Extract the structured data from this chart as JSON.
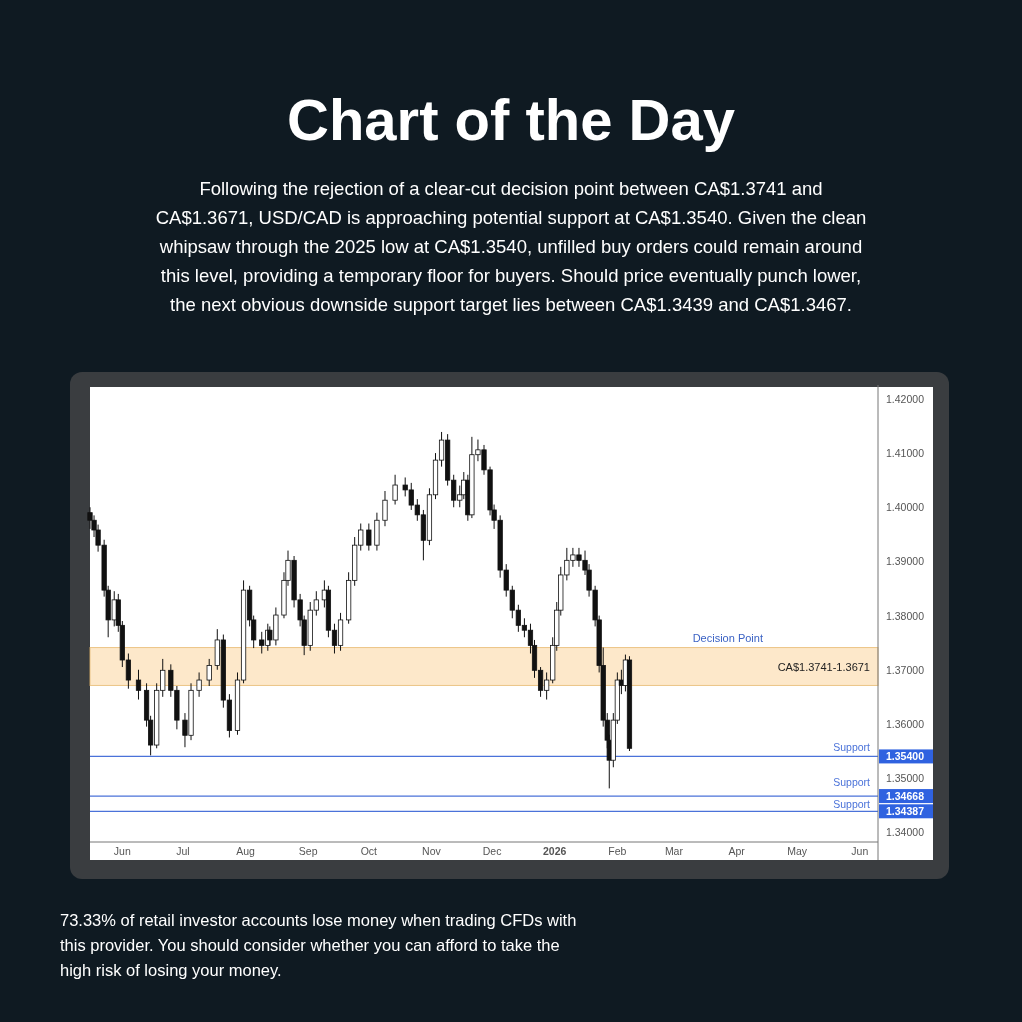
{
  "chart_data": {
    "type": "candlestick",
    "title": "Chart of the Day",
    "subtitle": "Following the rejection of a clear-cut decision point between CA$1.3741 and CA$1.3671, USD/CAD is approaching potential support at CA$1.3540. Given the clean whipsaw through the 2025 low at CA$1.3540, unfilled buy orders could remain around this level, providing a temporary floor for buyers. Should price eventually punch lower, the next obvious downside support target lies between CA$1.3439 and CA$1.3467.",
    "annotations": [
      "73.33% of retail investor accounts lose money when trading CFDs with this provider. You should consider whether you can afford to take the high risk of losing your money.",
      "CA$1.3741-1.3671"
    ],
    "x": [
      "2025-05-16",
      "2025-05-18",
      "2025-05-20",
      "2025-05-23",
      "2025-05-25",
      "2025-05-28",
      "2025-05-30",
      "2025-06-01",
      "2025-06-04",
      "2025-06-09",
      "2025-06-13",
      "2025-06-15",
      "2025-06-18",
      "2025-06-21",
      "2025-06-25",
      "2025-06-28",
      "2025-07-02",
      "2025-07-05",
      "2025-07-09",
      "2025-07-14",
      "2025-07-18",
      "2025-07-21",
      "2025-07-24",
      "2025-07-28",
      "2025-07-31",
      "2025-08-03",
      "2025-08-05",
      "2025-08-09",
      "2025-08-12",
      "2025-08-13",
      "2025-08-16",
      "2025-08-20",
      "2025-08-22",
      "2025-08-25",
      "2025-08-28",
      "2025-08-30",
      "2025-09-02",
      "2025-09-05",
      "2025-09-09",
      "2025-09-11",
      "2025-09-14",
      "2025-09-17",
      "2025-09-21",
      "2025-09-24",
      "2025-09-27",
      "2025-10-01",
      "2025-10-05",
      "2025-10-09",
      "2025-10-14",
      "2025-10-19",
      "2025-10-22",
      "2025-10-25",
      "2025-10-28",
      "2025-10-31",
      "2025-11-03",
      "2025-11-06",
      "2025-11-09",
      "2025-11-12",
      "2025-11-15",
      "2025-11-17",
      "2025-11-19",
      "2025-11-21",
      "2025-11-24",
      "2025-11-27",
      "2025-11-30",
      "2025-12-02",
      "2025-12-05",
      "2025-12-08",
      "2025-12-11",
      "2025-12-14",
      "2025-12-17",
      "2025-12-20",
      "2025-12-22",
      "2025-12-25",
      "2025-12-28",
      "2025-12-31",
      "2026-01-02",
      "2026-01-04",
      "2026-01-07",
      "2026-01-10",
      "2026-01-13",
      "2026-01-16",
      "2026-01-18",
      "2026-01-21",
      "2026-01-23",
      "2026-01-25",
      "2026-01-27",
      "2026-01-28",
      "2026-01-30",
      "2026-02-01",
      "2026-02-03",
      "2026-02-05",
      "2026-02-07"
    ],
    "ohlc": [
      [
        1.399,
        1.4,
        1.396,
        1.3976
      ],
      [
        1.3976,
        1.3985,
        1.3945,
        1.3958
      ],
      [
        1.3958,
        1.3968,
        1.3918,
        1.393
      ],
      [
        1.393,
        1.394,
        1.3835,
        1.3847
      ],
      [
        1.3847,
        1.3855,
        1.376,
        1.3792
      ],
      [
        1.3792,
        1.3845,
        1.378,
        1.3829
      ],
      [
        1.3829,
        1.384,
        1.377,
        1.3782
      ],
      [
        1.3782,
        1.379,
        1.3705,
        1.3718
      ],
      [
        1.3718,
        1.373,
        1.3665,
        1.3681
      ],
      [
        1.3681,
        1.37,
        1.3645,
        1.3662
      ],
      [
        1.3662,
        1.3675,
        1.3595,
        1.3607
      ],
      [
        1.3607,
        1.3615,
        1.3542,
        1.3561
      ],
      [
        1.3561,
        1.3675,
        1.3555,
        1.3662
      ],
      [
        1.3662,
        1.372,
        1.365,
        1.3699
      ],
      [
        1.3699,
        1.371,
        1.365,
        1.3662
      ],
      [
        1.3662,
        1.367,
        1.359,
        1.3607
      ],
      [
        1.3607,
        1.362,
        1.3557,
        1.3579
      ],
      [
        1.3579,
        1.3675,
        1.357,
        1.3662
      ],
      [
        1.3662,
        1.3695,
        1.365,
        1.3681
      ],
      [
        1.3681,
        1.372,
        1.367,
        1.3708
      ],
      [
        1.3708,
        1.3775,
        1.37,
        1.3755
      ],
      [
        1.3755,
        1.3765,
        1.363,
        1.3644
      ],
      [
        1.3644,
        1.3655,
        1.3575,
        1.3588
      ],
      [
        1.3588,
        1.3695,
        1.358,
        1.3681
      ],
      [
        1.3681,
        1.3865,
        1.3675,
        1.3847
      ],
      [
        1.3847,
        1.3855,
        1.378,
        1.3792
      ],
      [
        1.3792,
        1.38,
        1.374,
        1.3755
      ],
      [
        1.3755,
        1.377,
        1.373,
        1.3745
      ],
      [
        1.3745,
        1.3785,
        1.3735,
        1.3773
      ],
      [
        1.3773,
        1.378,
        1.3745,
        1.3755
      ],
      [
        1.3755,
        1.3815,
        1.3745,
        1.3801
      ],
      [
        1.3801,
        1.388,
        1.3795,
        1.3865
      ],
      [
        1.3865,
        1.392,
        1.3855,
        1.3902
      ],
      [
        1.3902,
        1.391,
        1.3815,
        1.3829
      ],
      [
        1.3829,
        1.384,
        1.378,
        1.3792
      ],
      [
        1.3792,
        1.38,
        1.3727,
        1.3745
      ],
      [
        1.3745,
        1.3825,
        1.3735,
        1.381
      ],
      [
        1.381,
        1.3845,
        1.38,
        1.3829
      ],
      [
        1.3829,
        1.3865,
        1.3815,
        1.3847
      ],
      [
        1.3847,
        1.3855,
        1.376,
        1.3773
      ],
      [
        1.3773,
        1.3785,
        1.373,
        1.3745
      ],
      [
        1.3745,
        1.3805,
        1.3735,
        1.3792
      ],
      [
        1.3792,
        1.388,
        1.3785,
        1.3865
      ],
      [
        1.3865,
        1.3945,
        1.3855,
        1.393
      ],
      [
        1.393,
        1.397,
        1.392,
        1.3958
      ],
      [
        1.3958,
        1.397,
        1.392,
        1.393
      ],
      [
        1.393,
        1.399,
        1.392,
        1.3976
      ],
      [
        1.3976,
        1.403,
        1.3965,
        1.4013
      ],
      [
        1.4013,
        1.406,
        1.4005,
        1.4041
      ],
      [
        1.4041,
        1.4055,
        1.402,
        1.4032
      ],
      [
        1.4032,
        1.4045,
        1.3995,
        1.4004
      ],
      [
        1.4004,
        1.4015,
        1.3975,
        1.3986
      ],
      [
        1.3986,
        1.3995,
        1.3902,
        1.3939
      ],
      [
        1.3939,
        1.4035,
        1.393,
        1.4023
      ],
      [
        1.4023,
        1.41,
        1.4015,
        1.4087
      ],
      [
        1.4087,
        1.4139,
        1.4075,
        1.4124
      ],
      [
        1.4124,
        1.4135,
        1.404,
        1.405
      ],
      [
        1.405,
        1.406,
        1.4,
        1.4013
      ],
      [
        1.4013,
        1.404,
        1.4,
        1.4023
      ],
      [
        1.4023,
        1.4065,
        1.4015,
        1.405
      ],
      [
        1.405,
        1.406,
        1.3975,
        1.3986
      ],
      [
        1.3986,
        1.413,
        1.398,
        1.4097
      ],
      [
        1.4097,
        1.4125,
        1.4085,
        1.4106
      ],
      [
        1.4106,
        1.4115,
        1.406,
        1.4069
      ],
      [
        1.4069,
        1.4075,
        1.3985,
        1.3995
      ],
      [
        1.3995,
        1.4005,
        1.396,
        1.3976
      ],
      [
        1.3976,
        1.3985,
        1.387,
        1.3884
      ],
      [
        1.3884,
        1.3895,
        1.3835,
        1.3847
      ],
      [
        1.3847,
        1.3855,
        1.3795,
        1.381
      ],
      [
        1.381,
        1.382,
        1.377,
        1.3782
      ],
      [
        1.3782,
        1.3795,
        1.376,
        1.3773
      ],
      [
        1.3773,
        1.3785,
        1.373,
        1.3745
      ],
      [
        1.3745,
        1.3755,
        1.3685,
        1.3699
      ],
      [
        1.3699,
        1.3705,
        1.365,
        1.3662
      ],
      [
        1.3662,
        1.3695,
        1.3645,
        1.3681
      ],
      [
        1.3681,
        1.376,
        1.3675,
        1.3745
      ],
      [
        1.3745,
        1.3825,
        1.3735,
        1.381
      ],
      [
        1.381,
        1.389,
        1.38,
        1.3875
      ],
      [
        1.3875,
        1.3925,
        1.3865,
        1.3902
      ],
      [
        1.3902,
        1.3925,
        1.389,
        1.3912
      ],
      [
        1.3912,
        1.3925,
        1.389,
        1.3902
      ],
      [
        1.3902,
        1.392,
        1.3875,
        1.3884
      ],
      [
        1.3884,
        1.3895,
        1.3835,
        1.3847
      ],
      [
        1.3847,
        1.3855,
        1.378,
        1.3792
      ],
      [
        1.3792,
        1.38,
        1.3695,
        1.3708
      ],
      [
        1.3708,
        1.3741,
        1.3595,
        1.3607
      ],
      [
        1.3607,
        1.362,
        1.3555,
        1.357
      ],
      [
        1.357,
        1.358,
        1.3481,
        1.3533
      ],
      [
        1.3533,
        1.362,
        1.352,
        1.3607
      ],
      [
        1.3607,
        1.3695,
        1.36,
        1.3681
      ],
      [
        1.3681,
        1.37,
        1.3655,
        1.3671
      ],
      [
        1.3671,
        1.3728,
        1.366,
        1.3718
      ],
      [
        1.3718,
        1.3725,
        1.355,
        1.3555
      ]
    ],
    "xlim": [
      "2025-05-16",
      "2026-06-10"
    ],
    "xticks": [
      {
        "value": "2025-06-01",
        "label": "Jun"
      },
      {
        "value": "2025-07-01",
        "label": "Jul"
      },
      {
        "value": "2025-08-01",
        "label": "Aug"
      },
      {
        "value": "2025-09-01",
        "label": "Sep"
      },
      {
        "value": "2025-10-01",
        "label": "Oct"
      },
      {
        "value": "2025-11-01",
        "label": "Nov"
      },
      {
        "value": "2025-12-01",
        "label": "Dec"
      },
      {
        "value": "2026-01-01",
        "label": "2026"
      },
      {
        "value": "2026-02-01",
        "label": "Feb"
      },
      {
        "value": "2026-03-01",
        "label": "Mar"
      },
      {
        "value": "2026-04-01",
        "label": "Apr"
      },
      {
        "value": "2026-05-01",
        "label": "May"
      },
      {
        "value": "2026-06-01",
        "label": "Jun"
      }
    ],
    "ylim": [
      1.3382,
      1.4222
    ],
    "yticks": [
      {
        "value": 1.34,
        "label": "1.34000"
      },
      {
        "value": 1.34387,
        "label": "1.34387"
      },
      {
        "value": 1.34668,
        "label": "1.34668"
      },
      {
        "value": 1.35,
        "label": "1.35000"
      },
      {
        "value": 1.354,
        "label": "1.35400"
      },
      {
        "value": 1.36,
        "label": "1.36000"
      },
      {
        "value": 1.37,
        "label": "1.37000"
      },
      {
        "value": 1.38,
        "label": "1.38000"
      },
      {
        "value": 1.39,
        "label": "1.39000"
      },
      {
        "value": 1.4,
        "label": "1.40000"
      },
      {
        "value": 1.41,
        "label": "1.41000"
      },
      {
        "value": 1.42,
        "label": "1.42000"
      }
    ],
    "bands": [
      {
        "axis": "y",
        "from": 1.3671,
        "to": 1.3741,
        "label": "Decision Point",
        "color": "#fde3bd"
      }
    ],
    "ref_lines": [
      {
        "axis": "y",
        "value": 1.354,
        "label": "Support",
        "color": "#4a72d9"
      },
      {
        "axis": "y",
        "value": 1.34668,
        "label": "Support",
        "color": "#4a72d9"
      },
      {
        "axis": "y",
        "value": 1.34387,
        "label": "Support",
        "color": "#4a72d9"
      }
    ],
    "grid": false
  }
}
